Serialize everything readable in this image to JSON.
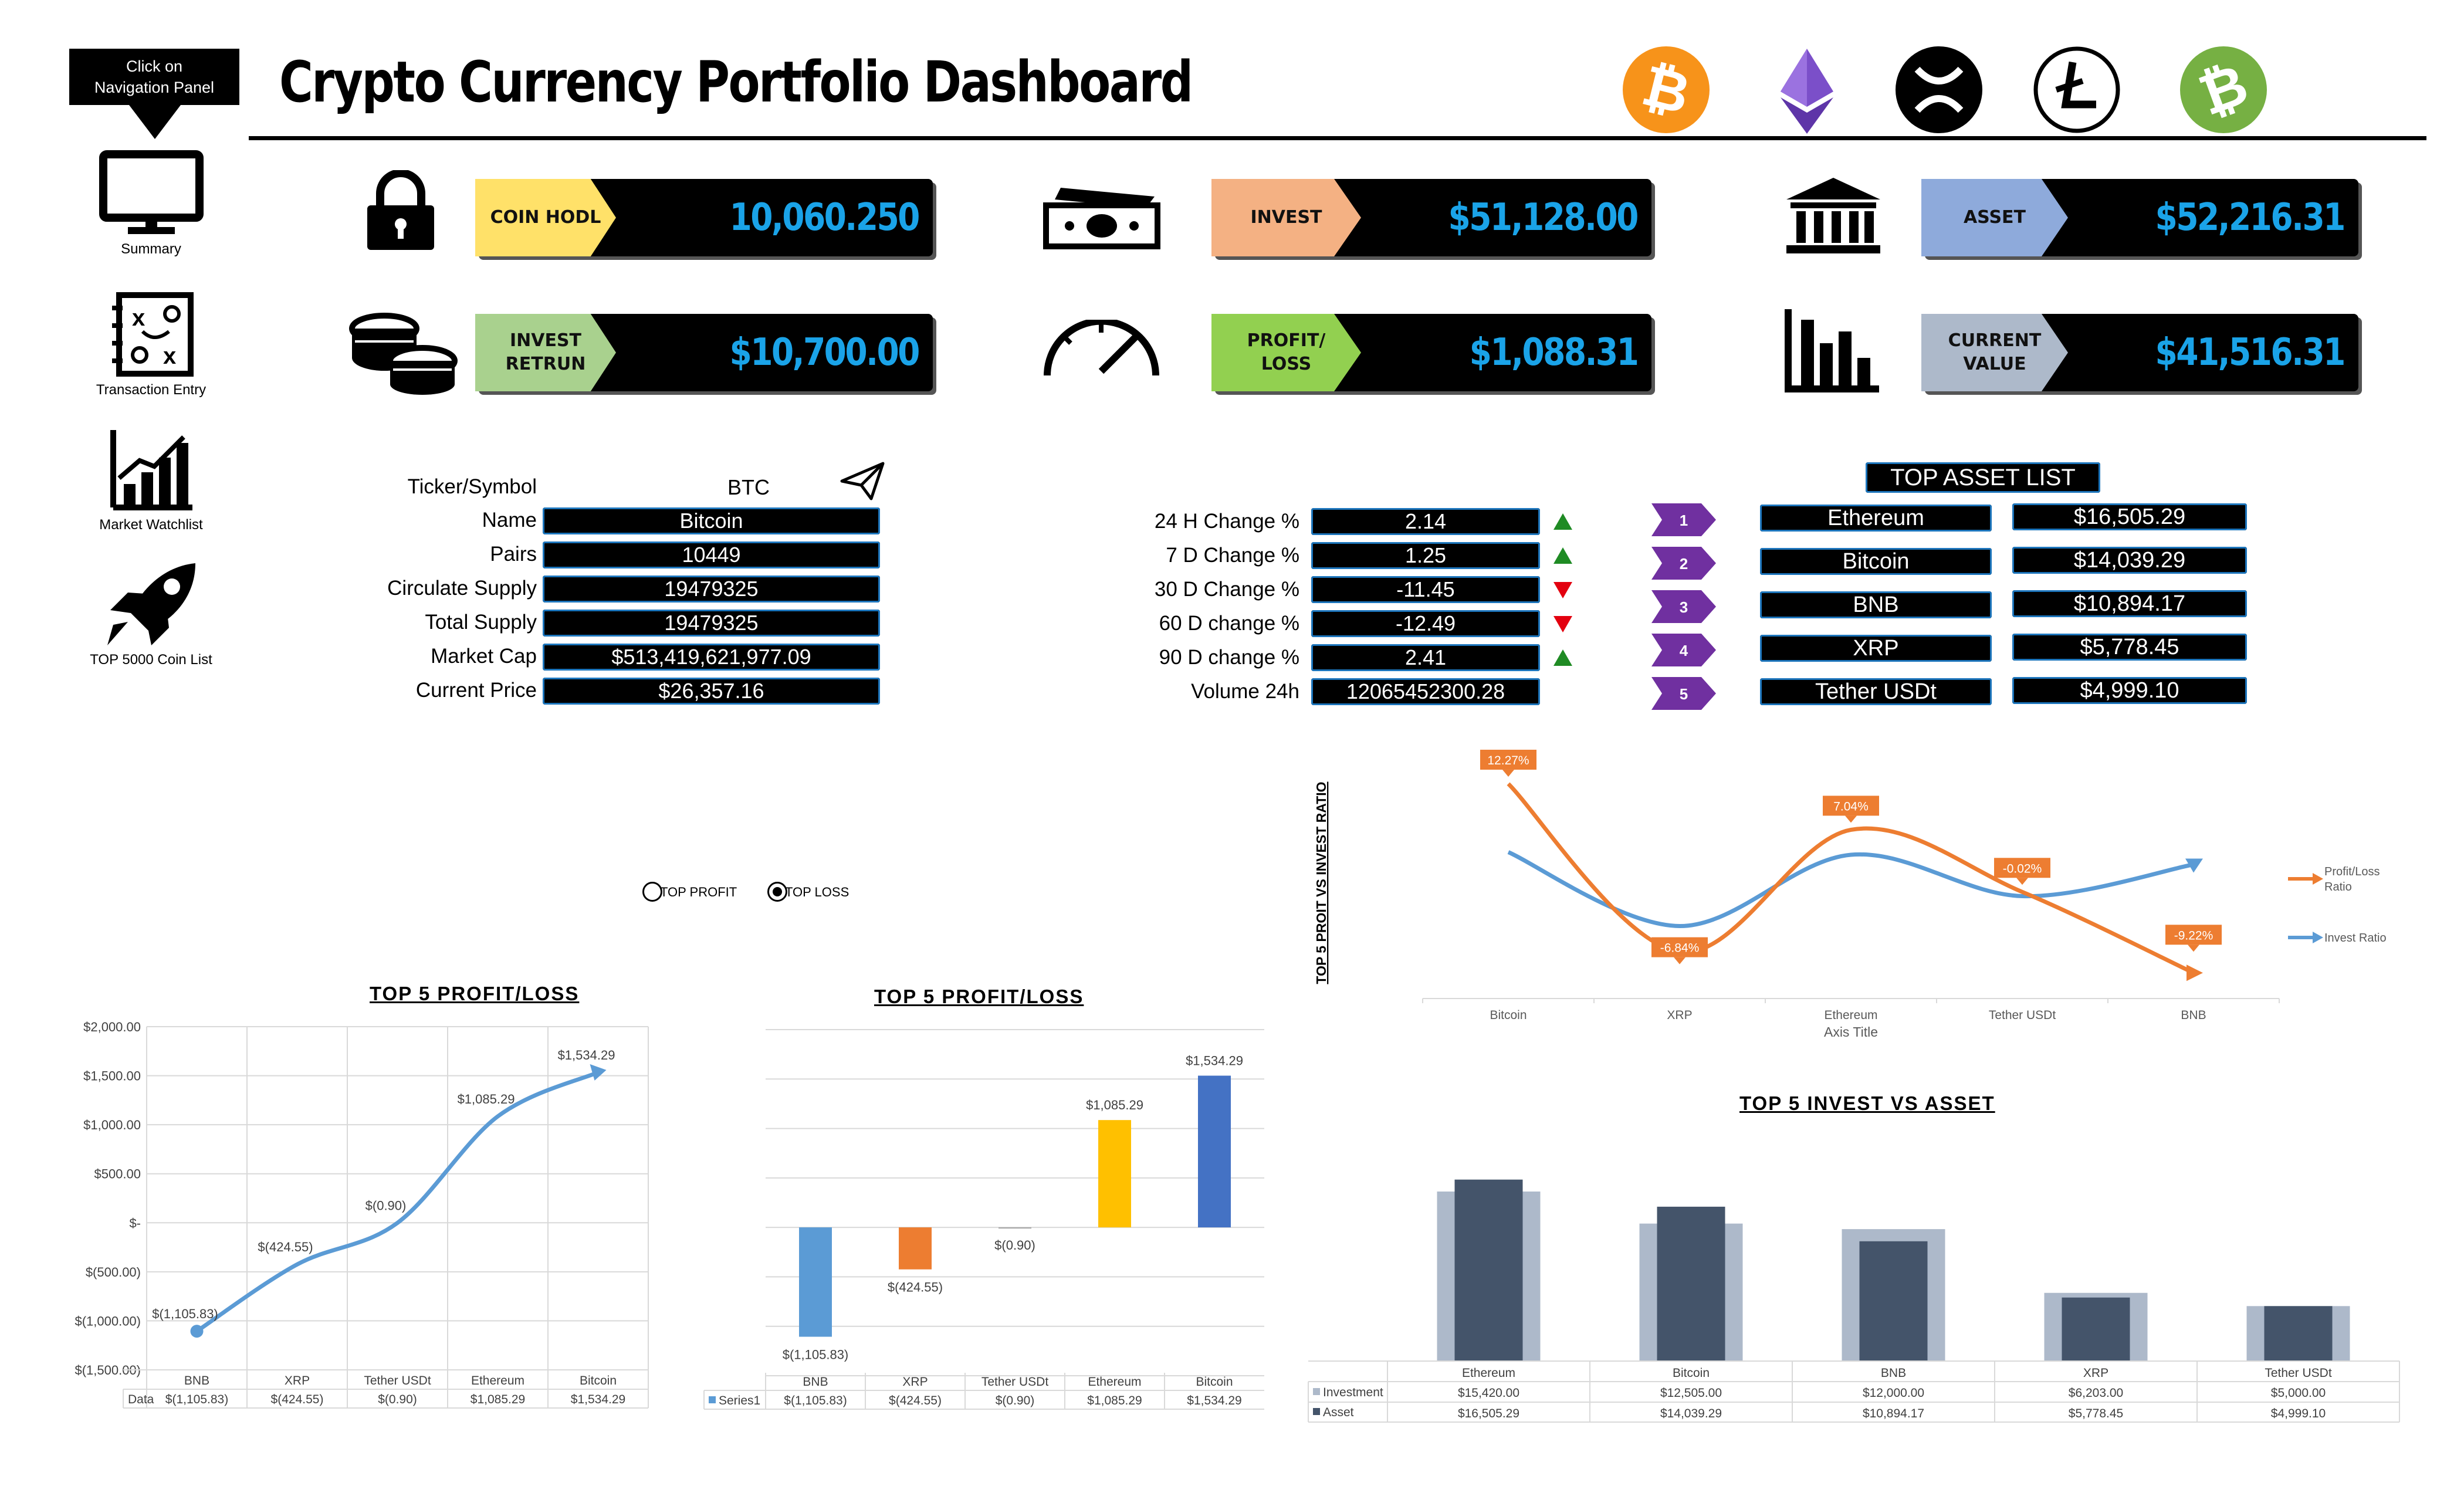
{
  "nav": {
    "hint": "Click on\nNavigation Panel",
    "items": [
      {
        "label": "Summary",
        "icon": "monitor-icon"
      },
      {
        "label": "Transaction Entry",
        "icon": "strategy-board-icon"
      },
      {
        "label": "Market Watchlist",
        "icon": "growth-chart-icon"
      },
      {
        "label": "TOP 5000 Coin List",
        "icon": "rocket-icon"
      }
    ]
  },
  "header": {
    "title": "Crypto Currency Portfolio Dashboard",
    "coin_icons": [
      "bitcoin-coin-icon",
      "ethereum-coin-icon",
      "xrp-coin-icon",
      "litecoin-coin-icon",
      "bitcoin-cash-coin-icon"
    ],
    "coin_colors": [
      "#f7931a",
      "#7b4fc9",
      "#000000",
      "#ffffff",
      "#76b043"
    ]
  },
  "kpis": [
    {
      "label": "COIN HODL",
      "value": "10,060.250",
      "color": "#ffe169",
      "icon": "lock-icon"
    },
    {
      "label": "INVEST",
      "value": "$51,128.00",
      "color": "#f4b183",
      "icon": "cash-icon"
    },
    {
      "label": "ASSET",
      "value": "$52,216.31",
      "color": "#8eaadb",
      "icon": "bank-icon"
    },
    {
      "label": "INVEST\nRETRUN",
      "value": "$10,700.00",
      "color": "#a9d18e",
      "icon": "coins-stack-icon"
    },
    {
      "label": "PROFIT/\nLOSS",
      "value": "$1,088.31",
      "color": "#92d050",
      "icon": "speedometer-icon"
    },
    {
      "label": "CURRENT\nVALUE",
      "value": "$41,516.31",
      "color": "#adb9ca",
      "icon": "bar-chart-icon"
    }
  ],
  "coin_info": {
    "ticker_label": "Ticker/Symbol",
    "ticker_value": "BTC",
    "fields": [
      {
        "label": "Name",
        "value": "Bitcoin"
      },
      {
        "label": "Pairs",
        "value": "10449"
      },
      {
        "label": "Circulate Supply",
        "value": "19479325"
      },
      {
        "label": "Total Supply",
        "value": "19479325"
      },
      {
        "label": "Market Cap",
        "value": "$513,419,621,977.09"
      },
      {
        "label": "Current Price",
        "value": "$26,357.16"
      }
    ]
  },
  "changes": [
    {
      "label": "24 H Change %",
      "value": "2.14",
      "trend": "up"
    },
    {
      "label": "7 D Change %",
      "value": "1.25",
      "trend": "up"
    },
    {
      "label": "30 D Change %",
      "value": "-11.45",
      "trend": "down"
    },
    {
      "label": "60 D change %",
      "value": "-12.49",
      "trend": "down"
    },
    {
      "label": "90 D change %",
      "value": "2.41",
      "trend": "up"
    },
    {
      "label": "Volume 24h",
      "value": "12065452300.28",
      "trend": "none"
    }
  ],
  "top_assets": {
    "title": "TOP ASSET LIST",
    "items": [
      {
        "rank": "1",
        "name": "Ethereum",
        "value": "$16,505.29"
      },
      {
        "rank": "2",
        "name": "Bitcoin",
        "value": "$14,039.29"
      },
      {
        "rank": "3",
        "name": "BNB",
        "value": "$10,894.17"
      },
      {
        "rank": "4",
        "name": "XRP",
        "value": "$5,778.45"
      },
      {
        "rank": "5",
        "name": "Tether USDt",
        "value": "$4,999.10"
      }
    ]
  },
  "toggle": {
    "option1": "TOP PROFIT",
    "option2": "TOP LOSS",
    "selected": "TOP LOSS"
  },
  "chart_data": [
    {
      "type": "line",
      "title": "TOP 5 PROFIT/LOSS",
      "categories": [
        "BNB",
        "XRP",
        "Tether USDt",
        "Ethereum",
        "Bitcoin"
      ],
      "series": [
        {
          "name": "Data",
          "values": [
            -1105.83,
            -424.55,
            -0.9,
            1085.29,
            1534.29
          ]
        }
      ],
      "value_labels": [
        "$(1,105.83)",
        "$(424.55)",
        "$(0.90)",
        "$1,085.29",
        "$1,534.29"
      ],
      "yticks": [
        "$2,000.00",
        "$1,500.00",
        "$1,000.00",
        "$500.00",
        "$-",
        "$(500.00)",
        "$(1,000.00)",
        "$(1,500.00)"
      ],
      "ylim": [
        -1500,
        2000
      ],
      "grid": true,
      "table": true
    },
    {
      "type": "bar",
      "title": "TOP 5 PROFIT/LOSS",
      "categories": [
        "BNB",
        "XRP",
        "Tether USDt",
        "Ethereum",
        "Bitcoin"
      ],
      "series": [
        {
          "name": "Series1",
          "values": [
            -1105.83,
            -424.55,
            -0.9,
            1085.29,
            1534.29
          ]
        }
      ],
      "value_labels": [
        "$(1,105.83)",
        "$(424.55)",
        "$(0.90)",
        "$1,085.29",
        "$1,534.29"
      ],
      "colors": [
        "#5b9bd5",
        "#ed7d31",
        "#a5a5a5",
        "#ffc000",
        "#4472c4"
      ],
      "ylim": [
        -1500,
        2000
      ],
      "grid": true,
      "table": true
    },
    {
      "type": "line",
      "title": "",
      "ylabel": "TOP 5 PROIT VS INVEST RATIO",
      "xlabel": "Axis Title",
      "categories": [
        "Bitcoin",
        "XRP",
        "Ethereum",
        "Tether USDt",
        "BNB"
      ],
      "series": [
        {
          "name": "Profit/Loss Ratio",
          "values": [
            12.27,
            -6.84,
            7.04,
            -0.02,
            -9.22
          ],
          "color": "#ed7d31"
        },
        {
          "name": "Invest Ratio",
          "values": [
            4.5,
            -3.9,
            4.2,
            -0.5,
            3.1
          ],
          "color": "#5b9bd5"
        }
      ],
      "value_labels": [
        "12.27%",
        "-6.84%",
        "7.04%",
        "-0.02%",
        "-9.22%"
      ],
      "legend": "right"
    },
    {
      "type": "bar",
      "title": "TOP 5 INVEST VS ASSET",
      "categories": [
        "Ethereum",
        "Bitcoin",
        "BNB",
        "XRP",
        "Tether USDt"
      ],
      "series": [
        {
          "name": "Investment",
          "values": [
            15420.0,
            12505.0,
            12000.0,
            6203.0,
            5000.0
          ],
          "color": "#adb9ca",
          "labels": [
            "$15,420.00",
            "$12,505.00",
            "$12,000.00",
            "$6,203.00",
            "$5,000.00"
          ]
        },
        {
          "name": "Asset",
          "values": [
            16505.29,
            14039.29,
            10894.17,
            5778.45,
            4999.1
          ],
          "color": "#44546a",
          "labels": [
            "$16,505.29",
            "$14,039.29",
            "$10,894.17",
            "$5,778.45",
            "$4,999.10"
          ]
        }
      ],
      "ylim": [
        0,
        18000
      ],
      "table": true
    }
  ]
}
